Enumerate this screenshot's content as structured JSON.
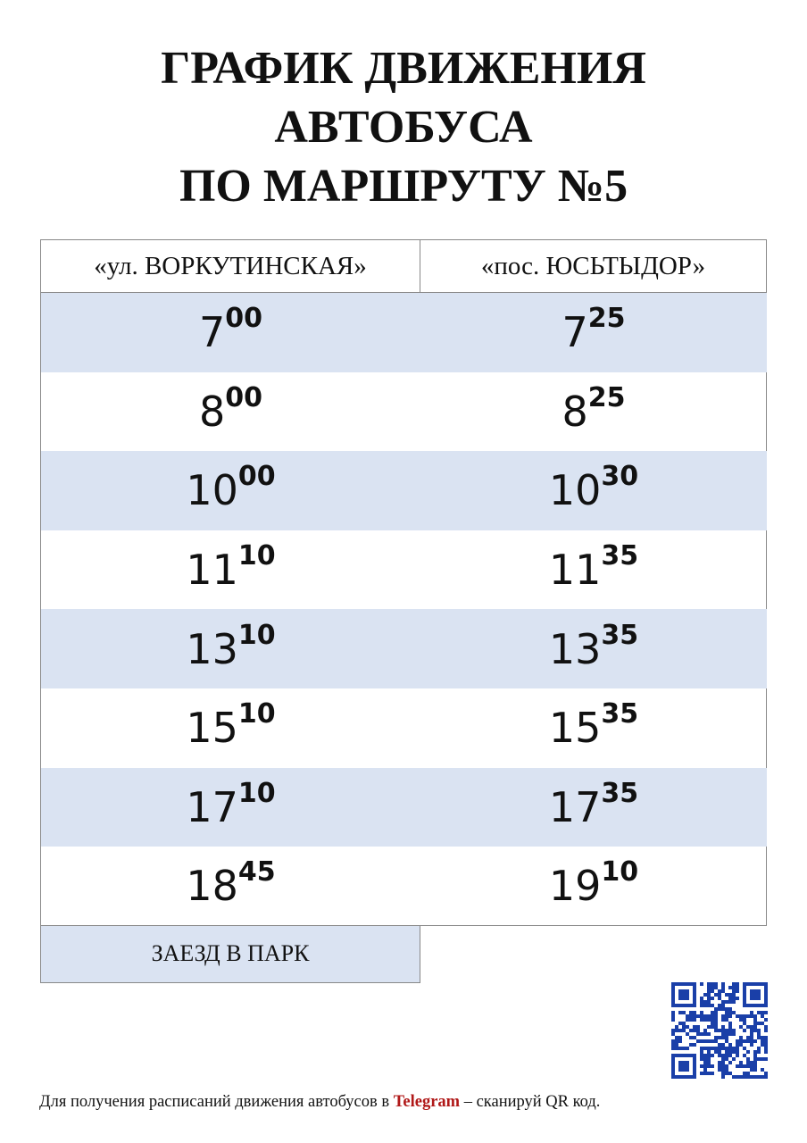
{
  "header": {
    "title": [
      "ГРАФИК ДВИЖЕНИЯ",
      "АВТОБУСА",
      "ПО МАРШРУТУ №5"
    ]
  },
  "table": {
    "columns": [
      "«ул. ВОРКУТИНСКАЯ»",
      "«пос. ЮСЬТЫДОР»"
    ],
    "rows": [
      [
        {
          "hour": "7",
          "minutes": "00"
        },
        {
          "hour": "7",
          "minutes": "25"
        }
      ],
      [
        {
          "hour": "8",
          "minutes": "00"
        },
        {
          "hour": "8",
          "minutes": "25"
        }
      ],
      [
        {
          "hour": "10",
          "minutes": "00"
        },
        {
          "hour": "10",
          "minutes": "30"
        }
      ],
      [
        {
          "hour": "11",
          "minutes": "10"
        },
        {
          "hour": "11",
          "minutes": "35"
        }
      ],
      [
        {
          "hour": "13",
          "minutes": "10"
        },
        {
          "hour": "13",
          "minutes": "35"
        }
      ],
      [
        {
          "hour": "15",
          "minutes": "10"
        },
        {
          "hour": "15",
          "minutes": "35"
        }
      ],
      [
        {
          "hour": "17",
          "minutes": "10"
        },
        {
          "hour": "17",
          "minutes": "35"
        }
      ],
      [
        {
          "hour": "18",
          "minutes": "45"
        },
        {
          "hour": "19",
          "minutes": "10"
        }
      ]
    ],
    "last_row": "ЗАЕЗД В ПАРК"
  },
  "footer": {
    "text_before": "Для получения расписаний движения автобусов в",
    "highlight": "Telegram",
    "text_after": "– сканируй QR код."
  }
}
